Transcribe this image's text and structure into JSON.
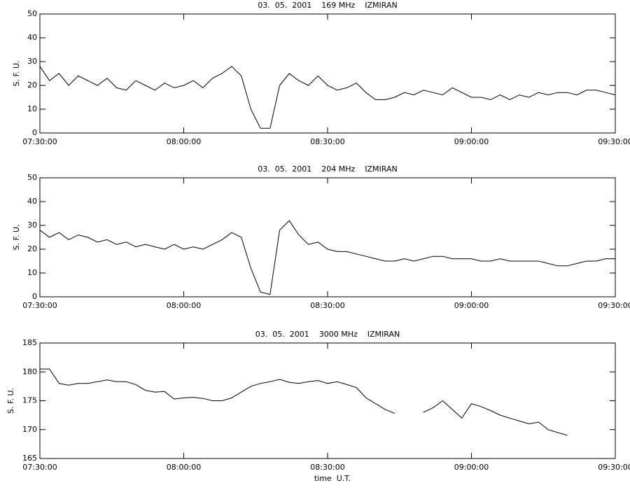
{
  "chart_data": [
    {
      "type": "line",
      "title": "03.  05.  2001    169 MHz    IZMIRAN",
      "y_label": "S. F. U.",
      "x": [
        "07:30:00",
        "07:32:00",
        "07:34:00",
        "07:36:00",
        "07:38:00",
        "07:40:00",
        "07:42:00",
        "07:44:00",
        "07:46:00",
        "07:48:00",
        "07:50:00",
        "07:52:00",
        "07:54:00",
        "07:56:00",
        "07:58:00",
        "08:00:00",
        "08:02:00",
        "08:04:00",
        "08:06:00",
        "08:08:00",
        "08:10:00",
        "08:12:00",
        "08:14:00",
        "08:16:00",
        "08:18:00",
        "08:20:00",
        "08:22:00",
        "08:24:00",
        "08:26:00",
        "08:28:00",
        "08:30:00",
        "08:32:00",
        "08:34:00",
        "08:36:00",
        "08:38:00",
        "08:40:00",
        "08:42:00",
        "08:44:00",
        "08:46:00",
        "08:48:00",
        "08:50:00",
        "08:52:00",
        "08:54:00",
        "08:56:00",
        "08:58:00",
        "09:00:00",
        "09:02:00",
        "09:04:00",
        "09:06:00",
        "09:08:00",
        "09:10:00",
        "09:12:00",
        "09:14:00",
        "09:16:00",
        "09:18:00",
        "09:20:00",
        "09:22:00",
        "09:24:00",
        "09:26:00",
        "09:28:00",
        "09:30:00"
      ],
      "series": [
        {
          "color": "#000000",
          "values": [
            28,
            22,
            25,
            20,
            24,
            22,
            20,
            23,
            19,
            18,
            22,
            20,
            18,
            21,
            19,
            20,
            22,
            19,
            23,
            25,
            28,
            24,
            10,
            2,
            2,
            20,
            25,
            22,
            20,
            24,
            20,
            18,
            19,
            21,
            17,
            14,
            14,
            15,
            17,
            16,
            18,
            17,
            16,
            19,
            17,
            15,
            15,
            14,
            16,
            14,
            16,
            15,
            17,
            16,
            17,
            17,
            16,
            18,
            18,
            17,
            16
          ]
        }
      ],
      "xlim": [
        "07:30:00",
        "09:30:00"
      ],
      "xticks": [
        "07:30:00",
        "08:00:00",
        "08:30:00",
        "09:00:00",
        "09:30:00"
      ],
      "ylim": [
        0,
        50
      ],
      "yticks": [
        0,
        10,
        20,
        30,
        40,
        50
      ]
    },
    {
      "type": "line",
      "title": "03.  05.  2001    204 MHz    IZMIRAN",
      "y_label": "S. F. U.",
      "x": [
        "07:30:00",
        "07:32:00",
        "07:34:00",
        "07:36:00",
        "07:38:00",
        "07:40:00",
        "07:42:00",
        "07:44:00",
        "07:46:00",
        "07:48:00",
        "07:50:00",
        "07:52:00",
        "07:54:00",
        "07:56:00",
        "07:58:00",
        "08:00:00",
        "08:02:00",
        "08:04:00",
        "08:06:00",
        "08:08:00",
        "08:10:00",
        "08:12:00",
        "08:14:00",
        "08:16:00",
        "08:18:00",
        "08:20:00",
        "08:22:00",
        "08:24:00",
        "08:26:00",
        "08:28:00",
        "08:30:00",
        "08:32:00",
        "08:34:00",
        "08:36:00",
        "08:38:00",
        "08:40:00",
        "08:42:00",
        "08:44:00",
        "08:46:00",
        "08:48:00",
        "08:50:00",
        "08:52:00",
        "08:54:00",
        "08:56:00",
        "08:58:00",
        "09:00:00",
        "09:02:00",
        "09:04:00",
        "09:06:00",
        "09:08:00",
        "09:10:00",
        "09:12:00",
        "09:14:00",
        "09:16:00",
        "09:18:00",
        "09:20:00",
        "09:22:00",
        "09:24:00",
        "09:26:00",
        "09:28:00",
        "09:30:00"
      ],
      "series": [
        {
          "color": "#000000",
          "values": [
            28,
            25,
            27,
            24,
            26,
            25,
            23,
            24,
            22,
            23,
            21,
            22,
            21,
            20,
            22,
            20,
            21,
            20,
            22,
            24,
            27,
            25,
            12,
            2,
            1,
            28,
            32,
            26,
            22,
            23,
            20,
            19,
            19,
            18,
            17,
            16,
            15,
            15,
            16,
            15,
            16,
            17,
            17,
            16,
            16,
            16,
            15,
            15,
            16,
            15,
            15,
            15,
            15,
            14,
            13,
            13,
            14,
            15,
            15,
            16,
            16
          ]
        }
      ],
      "xlim": [
        "07:30:00",
        "09:30:00"
      ],
      "xticks": [
        "07:30:00",
        "08:00:00",
        "08:30:00",
        "09:00:00",
        "09:30:00"
      ],
      "ylim": [
        0,
        50
      ],
      "yticks": [
        0,
        10,
        20,
        30,
        40,
        50
      ]
    },
    {
      "type": "line",
      "title": "03.  05.  2001    3000 MHz    IZMIRAN",
      "y_label": "S. F. U.",
      "x_label": "time  U.T.",
      "x": [
        "07:30:00",
        "07:32:00",
        "07:34:00",
        "07:36:00",
        "07:38:00",
        "07:40:00",
        "07:42:00",
        "07:44:00",
        "07:46:00",
        "07:48:00",
        "07:50:00",
        "07:52:00",
        "07:54:00",
        "07:56:00",
        "07:58:00",
        "08:00:00",
        "08:02:00",
        "08:04:00",
        "08:06:00",
        "08:08:00",
        "08:10:00",
        "08:12:00",
        "08:14:00",
        "08:16:00",
        "08:18:00",
        "08:20:00",
        "08:22:00",
        "08:24:00",
        "08:26:00",
        "08:28:00",
        "08:30:00",
        "08:32:00",
        "08:34:00",
        "08:36:00",
        "08:38:00",
        "08:40:00",
        "08:42:00",
        "08:44:00",
        "08:46:00",
        "08:48:00",
        "08:50:00",
        "08:52:00",
        "08:54:00",
        "08:56:00",
        "08:58:00",
        "09:00:00",
        "09:02:00",
        "09:04:00",
        "09:06:00",
        "09:08:00",
        "09:10:00",
        "09:12:00",
        "09:14:00",
        "09:16:00",
        "09:18:00",
        "09:20:00",
        "09:22:00",
        "09:24:00",
        "09:26:00",
        "09:28:00",
        "09:30:00"
      ],
      "series": [
        {
          "color": "#000000",
          "values": [
            180.5,
            180.5,
            178,
            177.7,
            178,
            178,
            178.3,
            178.6,
            178.3,
            178.3,
            177.8,
            176.8,
            176.5,
            176.6,
            175.3,
            175.5,
            175.6,
            175.4,
            175,
            175,
            175.5,
            176.5,
            177.5,
            178,
            178.3,
            178.7,
            178.2,
            178,
            178.3,
            178.5,
            178,
            178.3,
            177.8,
            177.3,
            175.5,
            174.5,
            173.5,
            172.8,
            null,
            null,
            173,
            173.8,
            175,
            173.5,
            172,
            174.5,
            174,
            173.3,
            172.5,
            172,
            171.5,
            171,
            171.3,
            170,
            169.5,
            169,
            null,
            null,
            null,
            null,
            null
          ]
        }
      ],
      "xlim": [
        "07:30:00",
        "09:30:00"
      ],
      "xticks": [
        "07:30:00",
        "08:00:00",
        "08:30:00",
        "09:00:00",
        "09:30:00"
      ],
      "ylim": [
        165,
        185
      ],
      "yticks": [
        165,
        170,
        175,
        180,
        185
      ]
    }
  ]
}
